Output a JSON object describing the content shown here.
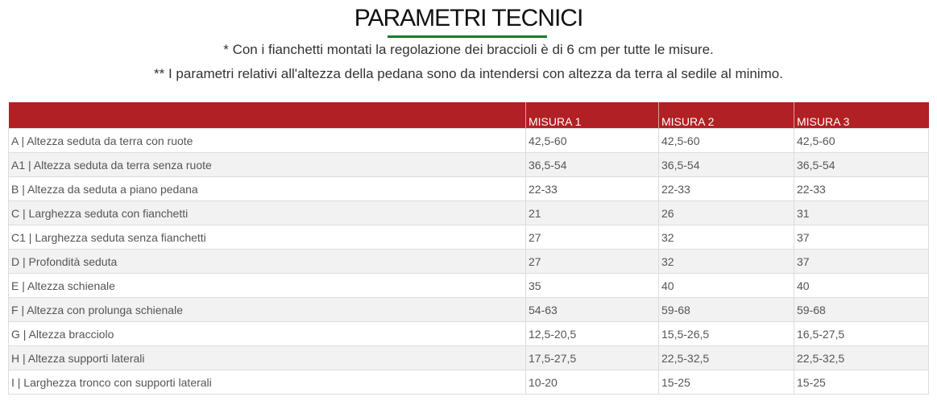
{
  "title": "PARAMETRI TECNICI",
  "notes": [
    "* Con i fianchetti montati la regolazione dei braccioli è di 6 cm per tutte le misure.",
    "** I parametri relativi all'altezza della pedana sono da intendersi con altezza da terra al sedile al minimo."
  ],
  "colors": {
    "header_bg": "#b12024",
    "underline": "#1e7a2e"
  },
  "table": {
    "headers": [
      "",
      "MISURA 1",
      "MISURA 2",
      "MISURA 3"
    ],
    "rows": [
      [
        "A | Altezza seduta da terra con ruote",
        "42,5-60",
        "42,5-60",
        "42,5-60"
      ],
      [
        "A1 | Altezza seduta da terra senza ruote",
        "36,5-54",
        "36,5-54",
        "36,5-54"
      ],
      [
        "B | Altezza da seduta a piano pedana",
        "22-33",
        "22-33",
        "22-33"
      ],
      [
        "C | Larghezza seduta con fianchetti",
        "21",
        "26",
        "31"
      ],
      [
        "C1 | Larghezza seduta senza fianchetti",
        "27",
        "32",
        "37"
      ],
      [
        "D | Profondità seduta",
        "27",
        "32",
        "37"
      ],
      [
        "E | Altezza schienale",
        "35",
        "40",
        "40"
      ],
      [
        "F | Altezza con prolunga schienale",
        "54-63",
        "59-68",
        "59-68"
      ],
      [
        "G | Altezza bracciolo",
        "12,5-20,5",
        "15,5-26,5",
        "16,5-27,5"
      ],
      [
        "H | Altezza supporti laterali",
        "17,5-27,5",
        "22,5-32,5",
        "22,5-32,5"
      ],
      [
        "I | Larghezza tronco con supporti laterali",
        "10-20",
        "15-25",
        "15-25"
      ]
    ]
  }
}
